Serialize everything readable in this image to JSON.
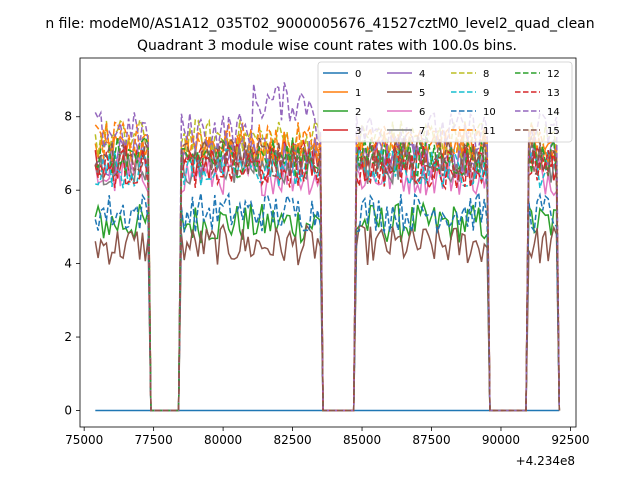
{
  "figure": {
    "suptitle": "n file: modeM0/AS1A12_035T02_9000005676_41527cztM0_level2_quad_clean",
    "title": "Quadrant 3 module wise count rates with 100.0s bins.",
    "offset_label": "+4.234e8"
  },
  "chart_data": {
    "type": "line",
    "title": "Quadrant 3 module wise count rates with 100.0s bins.",
    "xlabel": "",
    "ylabel": "",
    "x_offset": 423400000,
    "xlim": [
      74850,
      92700
    ],
    "ylim": [
      -0.45,
      9.6
    ],
    "xticks": [
      75000,
      77500,
      80000,
      82500,
      85000,
      87500,
      90000,
      92500
    ],
    "xtick_labels": [
      "75000",
      "77500",
      "80000",
      "82500",
      "85000",
      "87500",
      "90000",
      "92500"
    ],
    "yticks": [
      0,
      2,
      4,
      6,
      8
    ],
    "ytick_labels": [
      "0",
      "2",
      "4",
      "6",
      "8"
    ],
    "grid": false,
    "legend_placement": "top-right",
    "legend_columns": 4,
    "x_range_data": [
      75400,
      92100
    ],
    "gti_segments": [
      [
        75400,
        77300
      ],
      [
        78500,
        83500
      ],
      [
        84800,
        89500
      ],
      [
        91000,
        92050
      ]
    ],
    "series": [
      {
        "name": "0",
        "color": "#1f77b4",
        "dash": "solid",
        "level": 0.0
      },
      {
        "name": "1",
        "color": "#ff7f0e",
        "dash": "solid",
        "level": 7.1
      },
      {
        "name": "2",
        "color": "#2ca02c",
        "dash": "solid",
        "level": 5.1
      },
      {
        "name": "3",
        "color": "#d62728",
        "dash": "solid",
        "level": 6.8
      },
      {
        "name": "4",
        "color": "#9467bd",
        "dash": "solid",
        "level": 6.9
      },
      {
        "name": "5",
        "color": "#8c564b",
        "dash": "solid",
        "level": 4.5
      },
      {
        "name": "6",
        "color": "#e377c2",
        "dash": "solid",
        "level": 6.4
      },
      {
        "name": "7",
        "color": "#7f7f7f",
        "dash": "solid",
        "level": 6.7
      },
      {
        "name": "8",
        "color": "#bcbd22",
        "dash": "dashed",
        "level": 7.4
      },
      {
        "name": "9",
        "color": "#17becf",
        "dash": "dashed",
        "level": 6.6
      },
      {
        "name": "10",
        "color": "#1f77b4",
        "dash": "dashed",
        "level": 5.4
      },
      {
        "name": "11",
        "color": "#ff7f0e",
        "dash": "dashed",
        "level": 7.3
      },
      {
        "name": "12",
        "color": "#2ca02c",
        "dash": "dashed",
        "level": 6.9
      },
      {
        "name": "13",
        "color": "#d62728",
        "dash": "dashed",
        "level": 6.6
      },
      {
        "name": "14",
        "color": "#9467bd",
        "dash": "dashed",
        "level": 7.6
      },
      {
        "name": "15",
        "color": "#8c564b",
        "dash": "dashed",
        "level": 6.9
      }
    ]
  }
}
